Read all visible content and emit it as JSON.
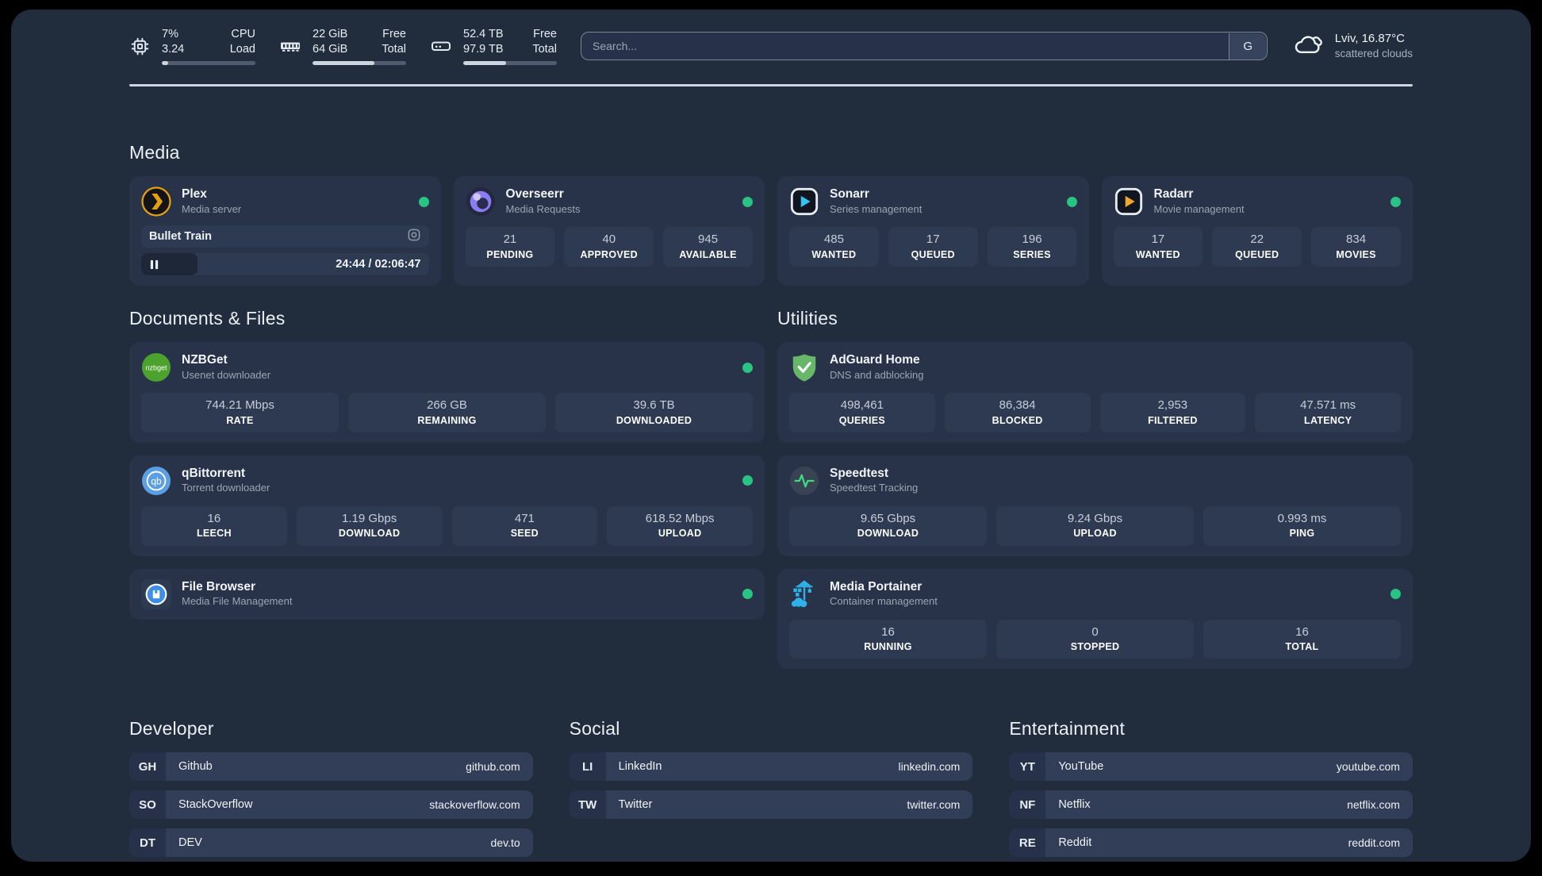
{
  "header": {
    "system_stats": [
      {
        "icon": "cpu-icon",
        "values": [
          "7%",
          "3.24"
        ],
        "labels": [
          "CPU",
          "Load"
        ],
        "progress_percent": 7
      },
      {
        "icon": "memory-icon",
        "values": [
          "22 GiB",
          "64 GiB"
        ],
        "labels": [
          "Free",
          "Total"
        ],
        "progress_percent": 66
      },
      {
        "icon": "disk-icon",
        "values": [
          "52.4 TB",
          "97.9 TB"
        ],
        "labels": [
          "Free",
          "Total"
        ],
        "progress_percent": 46
      }
    ],
    "search": {
      "placeholder": "Search...",
      "engine_button": "G"
    },
    "weather": {
      "location_temp": "Lviv, 16.87°C",
      "condition": "scattered clouds"
    }
  },
  "media": {
    "heading": "Media",
    "apps": [
      {
        "name": "Plex",
        "description": "Media server",
        "status": "online",
        "now_playing": {
          "title": "Bullet Train",
          "time_display": "24:44 / 02:06:47",
          "progress_percent": 19.5
        }
      },
      {
        "name": "Overseerr",
        "description": "Media Requests",
        "status": "online",
        "stats": [
          {
            "value": "21",
            "label": "PENDING"
          },
          {
            "value": "40",
            "label": "APPROVED"
          },
          {
            "value": "945",
            "label": "AVAILABLE"
          }
        ]
      },
      {
        "name": "Sonarr",
        "description": "Series management",
        "status": "online",
        "stats": [
          {
            "value": "485",
            "label": "WANTED"
          },
          {
            "value": "17",
            "label": "QUEUED"
          },
          {
            "value": "196",
            "label": "SERIES"
          }
        ]
      },
      {
        "name": "Radarr",
        "description": "Movie management",
        "status": "online",
        "stats": [
          {
            "value": "17",
            "label": "WANTED"
          },
          {
            "value": "22",
            "label": "QUEUED"
          },
          {
            "value": "834",
            "label": "MOVIES"
          }
        ]
      }
    ]
  },
  "documents": {
    "heading": "Documents & Files",
    "apps": [
      {
        "name": "NZBGet",
        "description": "Usenet downloader",
        "status": "online",
        "stats": [
          {
            "value": "744.21 Mbps",
            "label": "RATE"
          },
          {
            "value": "266 GB",
            "label": "REMAINING"
          },
          {
            "value": "39.6 TB",
            "label": "DOWNLOADED"
          }
        ]
      },
      {
        "name": "qBittorrent",
        "description": "Torrent downloader",
        "status": "online",
        "stats": [
          {
            "value": "16",
            "label": "LEECH"
          },
          {
            "value": "1.19 Gbps",
            "label": "DOWNLOAD"
          },
          {
            "value": "471",
            "label": "SEED"
          },
          {
            "value": "618.52 Mbps",
            "label": "UPLOAD"
          }
        ]
      },
      {
        "name": "File Browser",
        "description": "Media File Management",
        "status": "online"
      }
    ]
  },
  "utilities": {
    "heading": "Utilities",
    "apps": [
      {
        "name": "AdGuard Home",
        "description": "DNS and adblocking",
        "stats": [
          {
            "value": "498,461",
            "label": "QUERIES"
          },
          {
            "value": "86,384",
            "label": "BLOCKED"
          },
          {
            "value": "2,953",
            "label": "FILTERED"
          },
          {
            "value": "47.571 ms",
            "label": "LATENCY"
          }
        ]
      },
      {
        "name": "Speedtest",
        "description": "Speedtest Tracking",
        "stats": [
          {
            "value": "9.65 Gbps",
            "label": "DOWNLOAD"
          },
          {
            "value": "9.24 Gbps",
            "label": "UPLOAD"
          },
          {
            "value": "0.993 ms",
            "label": "PING"
          }
        ]
      },
      {
        "name": "Media Portainer",
        "description": "Container management",
        "status": "online",
        "stats": [
          {
            "value": "16",
            "label": "RUNNING"
          },
          {
            "value": "0",
            "label": "STOPPED"
          },
          {
            "value": "16",
            "label": "TOTAL"
          }
        ]
      }
    ]
  },
  "links": {
    "developer": {
      "heading": "Developer",
      "items": [
        {
          "badge": "GH",
          "name": "Github",
          "url": "github.com"
        },
        {
          "badge": "SO",
          "name": "StackOverflow",
          "url": "stackoverflow.com"
        },
        {
          "badge": "DT",
          "name": "DEV",
          "url": "dev.to"
        }
      ]
    },
    "social": {
      "heading": "Social",
      "items": [
        {
          "badge": "LI",
          "name": "LinkedIn",
          "url": "linkedin.com"
        },
        {
          "badge": "TW",
          "name": "Twitter",
          "url": "twitter.com"
        }
      ]
    },
    "entertainment": {
      "heading": "Entertainment",
      "items": [
        {
          "badge": "YT",
          "name": "YouTube",
          "url": "youtube.com"
        },
        {
          "badge": "NF",
          "name": "Netflix",
          "url": "netflix.com"
        },
        {
          "badge": "RE",
          "name": "Reddit",
          "url": "reddit.com"
        }
      ]
    }
  },
  "colors": {
    "status_online": "#29c383",
    "plex": "#e5a00d",
    "overseerr": "#8b7cf3",
    "sonarr": "#37c3f1",
    "radarr": "#f3a72e",
    "nzbget": "#4ba32e",
    "qbittorrent": "#5a9fe3",
    "filebrowser": "#3e8ee6",
    "adguard": "#68b769",
    "speedtest_pulse": "#3ddc84",
    "portainer": "#2fb1e8",
    "progress_fill": "#ccd4de",
    "app_background": "#212c3d",
    "card_background": "#283349"
  }
}
